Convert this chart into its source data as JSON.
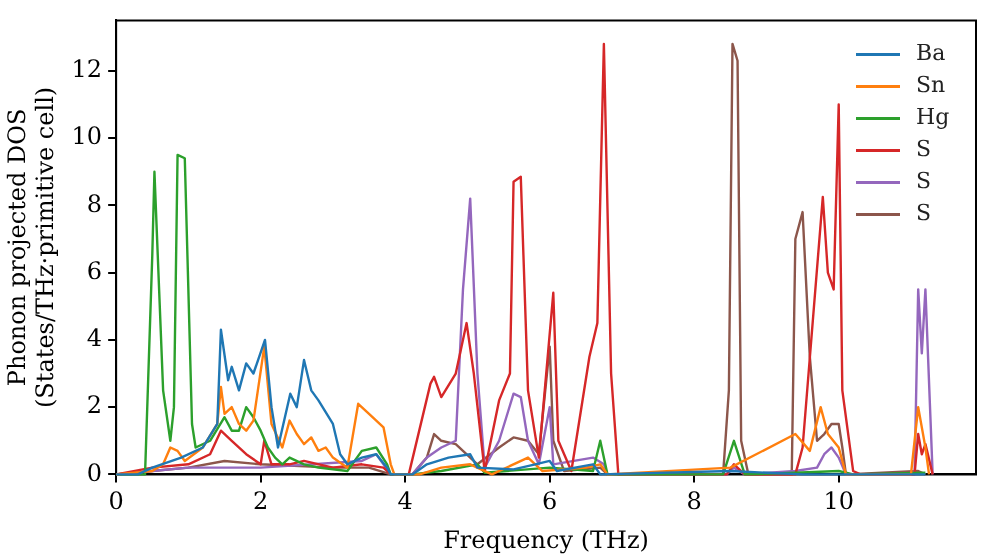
{
  "chart_data": {
    "type": "line",
    "xlabel": "Frequency (THz)",
    "ylabel": "Phonon projected DOS\n(States/THz·primitive cell)",
    "xlim": [
      0,
      11.9
    ],
    "ylim": [
      0,
      13.5
    ],
    "xticks": [
      0,
      2,
      4,
      6,
      8,
      10
    ],
    "yticks": [
      0,
      2,
      4,
      6,
      8,
      10,
      12
    ],
    "grid": false,
    "legend": "top right",
    "marker": "none",
    "line_style": "solid",
    "series": [
      {
        "name": "Ba",
        "color": "#1f77b4",
        "x": [
          0,
          0.3,
          0.5,
          0.9,
          1.2,
          1.4,
          1.45,
          1.55,
          1.6,
          1.7,
          1.8,
          1.9,
          2.06,
          2.15,
          2.24,
          2.41,
          2.5,
          2.6,
          2.7,
          2.8,
          3.0,
          3.1,
          3.2,
          3.4,
          3.6,
          3.75,
          3.8,
          4.1,
          4.3,
          4.6,
          4.9,
          5.0,
          5.5,
          5.8,
          6.0,
          6.1,
          6.6,
          6.7,
          8.5,
          9.5,
          11.2
        ],
        "values": [
          0,
          0,
          0.2,
          0.5,
          0.8,
          1.5,
          4.3,
          2.8,
          3.2,
          2.5,
          3.3,
          3.0,
          4.0,
          2.0,
          0.8,
          2.4,
          2.0,
          3.4,
          2.5,
          2.2,
          1.5,
          0.6,
          0.3,
          0.5,
          0.6,
          0.2,
          0,
          0,
          0.3,
          0.5,
          0.6,
          0.2,
          0.15,
          0.3,
          0.4,
          0.1,
          0.3,
          0,
          0.1,
          0,
          0
        ]
      },
      {
        "name": "Sn",
        "color": "#ff7f0e",
        "x": [
          0,
          0.5,
          0.65,
          0.75,
          0.85,
          0.95,
          1.2,
          1.4,
          1.45,
          1.5,
          1.6,
          1.7,
          1.8,
          1.9,
          2.05,
          2.15,
          2.3,
          2.4,
          2.5,
          2.6,
          2.7,
          2.8,
          2.9,
          3.0,
          3.2,
          3.35,
          3.5,
          3.7,
          3.8,
          3.85,
          4.2,
          4.5,
          4.9,
          5.2,
          5.7,
          5.9,
          6.5,
          6.7,
          6.8,
          8.5,
          9.4,
          9.6,
          9.75,
          9.85,
          10.0,
          10.1,
          11.0,
          11.1,
          11.2,
          11.25
        ],
        "values": [
          0,
          0.1,
          0.3,
          0.8,
          0.7,
          0.4,
          0.8,
          1.5,
          2.6,
          1.8,
          2.0,
          1.5,
          1.3,
          1.6,
          3.8,
          1.5,
          0.8,
          1.6,
          1.2,
          0.9,
          1.1,
          0.7,
          0.8,
          0.5,
          0.2,
          2.1,
          1.8,
          1.4,
          0.3,
          0,
          0,
          0.2,
          0.3,
          0,
          0.5,
          0.1,
          0.2,
          0.3,
          0,
          0.2,
          1.2,
          0.7,
          2.0,
          1.2,
          0.8,
          0,
          0,
          2.0,
          0.8,
          0
        ]
      },
      {
        "name": "Hg",
        "color": "#2ca02c",
        "x": [
          0,
          0.4,
          0.5,
          0.53,
          0.65,
          0.75,
          0.8,
          0.85,
          0.95,
          1.05,
          1.1,
          1.3,
          1.5,
          1.6,
          1.7,
          1.8,
          1.9,
          2.0,
          2.1,
          2.2,
          2.3,
          2.4,
          2.6,
          2.8,
          3.2,
          3.4,
          3.6,
          3.75,
          3.8,
          4.1,
          4.5,
          5.0,
          5.1,
          6.0,
          6.6,
          6.7,
          6.8,
          8.4,
          8.55,
          8.7,
          9.4,
          10.0,
          10.2,
          11.2
        ],
        "values": [
          0,
          0,
          6.5,
          9.0,
          2.5,
          1.0,
          2.0,
          9.5,
          9.4,
          1.5,
          0.8,
          1.0,
          1.7,
          1.3,
          1.3,
          2.0,
          1.7,
          1.3,
          0.8,
          0.5,
          0.3,
          0.5,
          0.3,
          0.2,
          0.1,
          0.7,
          0.8,
          0.3,
          0,
          0,
          0.1,
          0.3,
          0.05,
          0.2,
          0.1,
          1.0,
          0,
          0,
          1.0,
          0,
          0.05,
          0.1,
          0,
          0.05
        ]
      },
      {
        "name": "S",
        "color": "#d62728",
        "x": [
          0,
          0.5,
          1.0,
          1.3,
          1.45,
          1.6,
          1.8,
          2.0,
          2.05,
          2.15,
          2.4,
          2.6,
          3.0,
          3.4,
          3.7,
          3.8,
          4.05,
          4.35,
          4.4,
          4.5,
          4.7,
          4.85,
          4.95,
          5.1,
          5.3,
          5.45,
          5.5,
          5.6,
          5.7,
          5.85,
          6.05,
          6.12,
          6.3,
          6.55,
          6.66,
          6.75,
          6.85,
          6.95,
          8.45,
          8.55,
          8.7,
          9.4,
          9.5,
          9.78,
          9.85,
          9.93,
          10.0,
          10.05,
          10.2,
          10.3,
          11.05,
          11.1,
          11.15,
          11.2,
          11.3
        ],
        "values": [
          0,
          0.2,
          0.3,
          0.6,
          1.3,
          1.0,
          0.6,
          0.3,
          1.0,
          0.3,
          0.3,
          0.4,
          0.2,
          0.3,
          0.2,
          0,
          0,
          2.7,
          2.9,
          2.3,
          3.0,
          4.5,
          3.0,
          0.1,
          2.2,
          3.0,
          8.7,
          8.85,
          2.5,
          0.5,
          5.4,
          1.0,
          0.1,
          3.5,
          4.5,
          12.8,
          3.0,
          0,
          0,
          0.3,
          0,
          0,
          0.8,
          8.25,
          6.0,
          5.5,
          11.0,
          2.5,
          0.1,
          0,
          0,
          1.2,
          0.6,
          0.9,
          0
        ]
      },
      {
        "name": "S",
        "color": "#9467bd",
        "x": [
          0,
          0.5,
          1.0,
          2.0,
          3.4,
          3.6,
          3.8,
          4.1,
          4.3,
          4.5,
          4.7,
          4.8,
          4.9,
          5.0,
          5.1,
          5.3,
          5.5,
          5.6,
          5.7,
          5.85,
          6.0,
          6.05,
          6.6,
          6.75,
          6.8,
          8.45,
          8.55,
          8.7,
          9.4,
          9.7,
          9.8,
          9.9,
          10.0,
          10.1,
          11.05,
          11.1,
          11.15,
          11.2,
          11.3
        ],
        "values": [
          0,
          0.1,
          0.2,
          0.2,
          0.4,
          0.6,
          0,
          0,
          0.5,
          0.8,
          1.0,
          5.5,
          8.2,
          3.0,
          0.2,
          1.0,
          2.4,
          2.3,
          1.0,
          0.3,
          2.0,
          0.3,
          0.5,
          0.3,
          0,
          0,
          0.2,
          0,
          0.1,
          0.2,
          0.6,
          0.8,
          0.5,
          0,
          0,
          5.5,
          3.6,
          5.5,
          0
        ]
      },
      {
        "name": "S",
        "color": "#8c564b",
        "x": [
          0,
          0.5,
          1.0,
          1.5,
          2.0,
          3.0,
          3.5,
          3.8,
          4.1,
          4.3,
          4.4,
          4.5,
          4.7,
          4.8,
          5.0,
          5.3,
          5.5,
          5.7,
          5.85,
          6.0,
          6.05,
          6.2,
          6.7,
          6.8,
          8.4,
          8.48,
          8.53,
          8.6,
          8.65,
          8.75,
          9.35,
          9.4,
          9.5,
          9.6,
          9.7,
          9.8,
          9.9,
          10.0,
          10.05,
          10.1,
          11.1,
          11.2
        ],
        "values": [
          0,
          0.1,
          0.2,
          0.4,
          0.3,
          0.2,
          0.2,
          0,
          0,
          0.5,
          1.2,
          1.0,
          0.9,
          0.7,
          0.3,
          0.8,
          1.1,
          1.0,
          0.6,
          3.8,
          1.0,
          0.1,
          0.2,
          0,
          0,
          2.5,
          12.8,
          12.3,
          1.0,
          0,
          0,
          7.0,
          7.8,
          3.5,
          1.0,
          1.2,
          1.5,
          1.5,
          0.8,
          0,
          0.1,
          0
        ]
      }
    ]
  }
}
